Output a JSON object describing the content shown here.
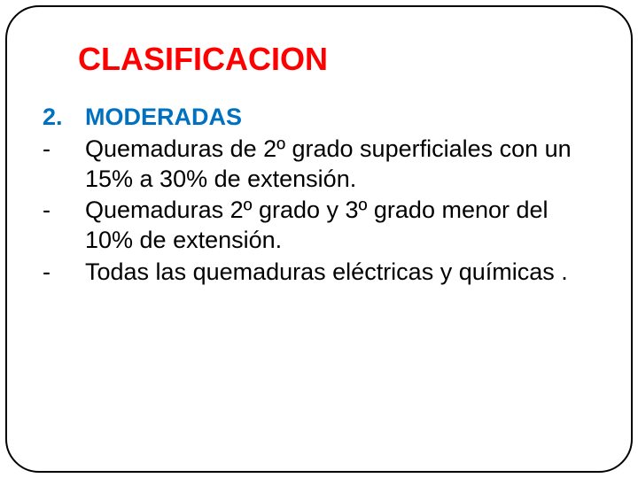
{
  "title": {
    "text": "CLASIFICACION",
    "color": "#ff0000",
    "fontsize": 36
  },
  "content": {
    "heading": {
      "marker": "2.",
      "text": "MODERADAS",
      "color": "#0070c0"
    },
    "items": [
      {
        "marker": "-",
        "text": "Quemaduras de 2º grado superficiales con un 15% a 30% de extensión.",
        "justify": false
      },
      {
        "marker": "-",
        "text": "Quemaduras 2º grado y 3º grado  menor del 10% de extensión.",
        "justify": false
      },
      {
        "marker": "-",
        "text": "Todas las quemaduras eléctricas y químicas .",
        "justify": true
      }
    ],
    "text_color": "#000000",
    "fontsize": 27
  },
  "frame": {
    "border_color": "#000000",
    "border_radius": 38,
    "background": "#ffffff"
  }
}
